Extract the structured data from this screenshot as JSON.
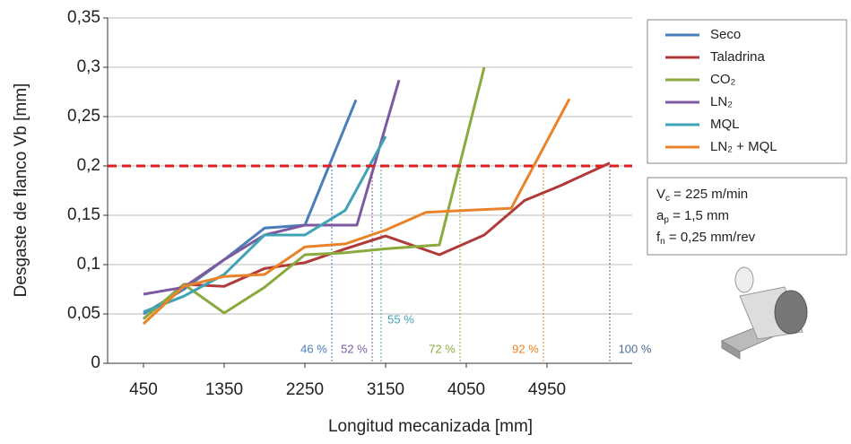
{
  "chart_data": {
    "type": "line",
    "x_label": "Longitud mecanizada [mm]",
    "y_label": "Desgaste de flanco Vb [mm]",
    "xlim": [
      50,
      5900
    ],
    "ylim": [
      0,
      0.35
    ],
    "xticks": [
      450,
      1350,
      2250,
      3150,
      4050,
      4950
    ],
    "yticks": [
      0,
      {
        "value": 0.05,
        "label": "0,05"
      },
      {
        "value": 0.1,
        "label": "0,1"
      },
      {
        "value": 0.15,
        "label": "0,15"
      },
      {
        "value": 0.2,
        "label": "0,2"
      },
      {
        "value": 0.25,
        "label": "0,25"
      },
      {
        "value": 0.3,
        "label": "0,3"
      },
      {
        "value": 0.35,
        "label": "0,35"
      }
    ],
    "grid": true,
    "threshold": 0.2,
    "threshold_color": "#e02020",
    "series": [
      {
        "name": "Seco",
        "color": "#4a7ebb",
        "x": [
          450,
          900,
          1350,
          1800,
          2250,
          2820
        ],
        "values": [
          0.05,
          0.075,
          0.105,
          0.137,
          0.14,
          0.267
        ]
      },
      {
        "name": "Taladrina",
        "color": "#b03a3a",
        "x": [
          450,
          900,
          1350,
          1800,
          2250,
          2700,
          3150,
          3750,
          4250,
          4700,
          5100,
          5650
        ],
        "values": [
          0.045,
          0.08,
          0.078,
          0.096,
          0.102,
          0.116,
          0.129,
          0.11,
          0.13,
          0.165,
          0.18,
          0.203
        ]
      },
      {
        "name": "CO₂",
        "color": "#8aaa3e",
        "x": [
          450,
          900,
          1350,
          1800,
          2250,
          2700,
          3150,
          3750,
          4250
        ],
        "values": [
          0.045,
          0.08,
          0.051,
          0.077,
          0.11,
          0.112,
          0.116,
          0.12,
          0.3
        ]
      },
      {
        "name": "LN₂",
        "color": "#7d5aa0",
        "x": [
          450,
          900,
          1350,
          1800,
          2250,
          2830,
          3300
        ],
        "values": [
          0.07,
          0.077,
          0.105,
          0.13,
          0.14,
          0.14,
          0.287
        ]
      },
      {
        "name": "MQL",
        "color": "#3ea3b5",
        "x": [
          450,
          900,
          1350,
          1800,
          2250,
          2700,
          3150
        ],
        "values": [
          0.052,
          0.068,
          0.09,
          0.13,
          0.13,
          0.155,
          0.23
        ]
      },
      {
        "name": "LN₂ + MQL",
        "color": "#e8832a",
        "x": [
          450,
          900,
          1350,
          1800,
          2250,
          2700,
          3150,
          3600,
          4050,
          4550,
          5200
        ],
        "values": [
          0.04,
          0.078,
          0.088,
          0.09,
          0.118,
          0.121,
          0.135,
          0.153,
          0.155,
          0.157,
          0.268
        ]
      }
    ],
    "annotations": [
      {
        "text": "46 %",
        "x": 2550,
        "color": "#4a7ebb"
      },
      {
        "text": "52 %",
        "x": 3000,
        "color": "#7d5aa0"
      },
      {
        "text": "55 %",
        "x": 3100,
        "color": "#3ea3b5"
      },
      {
        "text": "72 %",
        "x": 3980,
        "color": "#8aaa3e"
      },
      {
        "text": "92 %",
        "x": 4910,
        "color": "#e8832a"
      },
      {
        "text": "100 %",
        "x": 5650,
        "color": "#4a6a9a"
      }
    ],
    "conditions": [
      {
        "main": "V",
        "sub": "c",
        "rest": " = 225 m/min"
      },
      {
        "main": "a",
        "sub": "p",
        "rest": " = 1,5 mm"
      },
      {
        "main": "f",
        "sub": "n",
        "rest": " = 0,25 mm/rev"
      }
    ]
  }
}
